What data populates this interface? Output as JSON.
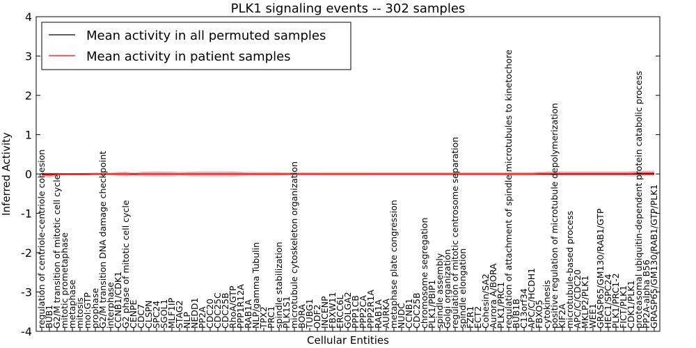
{
  "chart_data": {
    "type": "line",
    "title": "PLK1 signaling events -- 302 samples",
    "xlabel": "Cellular Entities",
    "ylabel": "Inferred Activity",
    "ylim": [
      -4,
      4
    ],
    "yticks": [
      -4,
      -3,
      -2,
      -1,
      0,
      1,
      2,
      3,
      4
    ],
    "grid": false,
    "legend_position": "top-left",
    "legend": [
      {
        "label": "Mean activity in all permuted samples",
        "color": "#000000"
      },
      {
        "label": "Mean activity in patient samples",
        "color": "#ff0000"
      }
    ],
    "colors": {
      "permuted": "#000000",
      "patient": "#ff0000",
      "band_permuted": "#c8c8c8",
      "band_patient": "#f08080"
    },
    "categories": [
      "regulation of centriole-centriole cohesion",
      "BUB1",
      "G2/M transition of mitotic cell cycle",
      "mitotic prometaphase",
      "metaphase",
      "mitosis",
      "mol:GTP",
      "prophase",
      "G2/M transition DNA damage checkpoint",
      "interphase",
      "CCNB1/CDK1",
      "G2 phase of mitotic cell cycle",
      "CENPE",
      "CDC7",
      "CLSPN",
      "SPC24",
      "SGOL1",
      "MLF1IP",
      "STAG2",
      "NLP",
      "NEDD1",
      "PP2A",
      "CDC20",
      "CDC25C",
      "CDC25B",
      "RhoA/GTP",
      "PPP1R12A",
      "RAB1A",
      "NLP/gamma Tubulin",
      "TPX2",
      "PRC1",
      "spindle stabilization",
      "PLK1S1",
      "microtubule cytoskeleton organization",
      "BORA",
      "TUBG1",
      "ODF2",
      "INCENP",
      "FBXW11",
      "ERCC6L",
      "GOLGA2",
      "PPP1CB",
      "PPP2CA",
      "PPP2R1A",
      "RAB1A",
      "AURKA",
      "metaphase plate congression",
      "NUDC",
      "CCNB1",
      "CDC25B",
      "chromosome segregation",
      "PLK1/PBIP1",
      "spindle assembly",
      "Golgi organization",
      "regulation of mitotic centrosome separation",
      "spindle elongation",
      "FZR1",
      "ECT2",
      "Cohesin/SA2",
      "Aurora A/BORA",
      "PLK1/PRC1",
      "regulation of attachment of spindle microtubules to kinetochore",
      "BUB1B",
      "C13orf34",
      "APC/C/HCDH1",
      "FBXO5",
      "cytokinesis",
      "positive regulation of microtubule depolymerization",
      "KIF2A",
      "microtubule-based process",
      "APC/C/CDC20",
      "MKLP2/PLK1",
      "WEE1",
      "GRASP65/GM130/RAB1/GTP",
      "HEC1/SPC24",
      "PLK1/PRC1-2",
      "FICT/PLK1",
      "CDK1/PLK1",
      "proteasomal ubiquitin-dependent protein catabolic process",
      "PP2A-alpha B56",
      "GRASP65/GM130/RAB1/GTP/PLK1"
    ],
    "series": [
      {
        "name": "Mean activity in all permuted samples",
        "values": [
          0.0,
          0.0,
          0.0,
          0.0,
          0.0,
          0.0,
          0.0,
          0.0,
          0.0,
          0.0,
          0.0,
          0.0,
          0.0,
          0.0,
          0.0,
          0.0,
          0.0,
          0.0,
          0.0,
          0.0,
          0.0,
          0.0,
          0.0,
          0.0,
          0.0,
          0.0,
          0.0,
          0.0,
          0.0,
          0.0,
          0.0,
          0.0,
          0.0,
          0.0,
          0.0,
          0.0,
          0.0,
          0.0,
          0.0,
          0.0,
          0.0,
          0.0,
          0.0,
          0.0,
          0.0,
          0.0,
          0.0,
          0.0,
          0.0,
          0.0,
          0.0,
          0.0,
          0.0,
          0.0,
          0.0,
          0.0,
          0.0,
          0.0,
          0.0,
          0.0,
          0.0,
          0.0,
          0.0,
          0.0,
          0.0,
          0.0,
          0.0,
          0.0,
          0.0,
          0.0,
          0.0,
          0.0,
          0.0,
          0.0,
          0.0,
          0.0,
          0.0,
          0.0,
          0.0,
          0.0,
          0.0
        ],
        "band": [
          0.03,
          0.03,
          0.02,
          0.02,
          0.03,
          0.03,
          0.04,
          0.04,
          0.03,
          0.03,
          0.04,
          0.05,
          0.05,
          0.06,
          0.07,
          0.08,
          0.07,
          0.07,
          0.06,
          0.06,
          0.07,
          0.08,
          0.08,
          0.08,
          0.08,
          0.07,
          0.06,
          0.06,
          0.06,
          0.06,
          0.06,
          0.05,
          0.05,
          0.05,
          0.05,
          0.05,
          0.05,
          0.06,
          0.06,
          0.06,
          0.06,
          0.06,
          0.06,
          0.05,
          0.05,
          0.05,
          0.05,
          0.05,
          0.05,
          0.05,
          0.05,
          0.05,
          0.05,
          0.05,
          0.05,
          0.05,
          0.05,
          0.05,
          0.05,
          0.05,
          0.05,
          0.05,
          0.05,
          0.05,
          0.05,
          0.06,
          0.06,
          0.06,
          0.06,
          0.06,
          0.06,
          0.06,
          0.06,
          0.06,
          0.06,
          0.06,
          0.06,
          0.07,
          0.07,
          0.06,
          0.06
        ]
      },
      {
        "name": "Mean activity in patient samples",
        "values": [
          -0.02,
          -0.03,
          -0.01,
          -0.01,
          -0.01,
          -0.01,
          -0.01,
          0.0,
          0.0,
          0.0,
          0.0,
          0.0,
          -0.01,
          0.0,
          0.0,
          0.0,
          0.0,
          0.0,
          0.0,
          0.0,
          0.0,
          0.0,
          0.0,
          0.0,
          0.0,
          0.0,
          0.0,
          0.0,
          0.0,
          0.0,
          0.0,
          0.0,
          0.0,
          0.0,
          0.0,
          0.0,
          0.0,
          0.0,
          0.0,
          0.0,
          0.0,
          0.0,
          0.0,
          0.0,
          0.0,
          0.0,
          0.0,
          0.0,
          0.0,
          0.0,
          0.0,
          0.0,
          0.0,
          0.0,
          0.0,
          0.0,
          0.0,
          0.0,
          0.0,
          0.0,
          0.0,
          0.0,
          0.0,
          0.0,
          0.0,
          0.01,
          0.01,
          0.01,
          0.01,
          0.01,
          0.01,
          0.01,
          0.01,
          0.01,
          0.01,
          0.01,
          0.01,
          0.01,
          0.02,
          0.02,
          0.02
        ],
        "band": [
          0.05,
          0.06,
          0.04,
          0.03,
          0.03,
          0.03,
          0.03,
          0.03,
          0.03,
          0.03,
          0.05,
          0.06,
          0.03,
          0.05,
          0.05,
          0.05,
          0.05,
          0.05,
          0.04,
          0.05,
          0.05,
          0.05,
          0.05,
          0.05,
          0.05,
          0.06,
          0.05,
          0.04,
          0.04,
          0.04,
          0.04,
          0.04,
          0.03,
          0.03,
          0.03,
          0.03,
          0.03,
          0.03,
          0.03,
          0.03,
          0.03,
          0.03,
          0.03,
          0.03,
          0.03,
          0.03,
          0.03,
          0.03,
          0.03,
          0.03,
          0.03,
          0.03,
          0.03,
          0.03,
          0.03,
          0.03,
          0.03,
          0.03,
          0.03,
          0.03,
          0.03,
          0.04,
          0.04,
          0.04,
          0.04,
          0.04,
          0.05,
          0.05,
          0.05,
          0.05,
          0.05,
          0.05,
          0.05,
          0.05,
          0.05,
          0.05,
          0.05,
          0.05,
          0.06,
          0.06,
          0.06
        ]
      }
    ]
  }
}
